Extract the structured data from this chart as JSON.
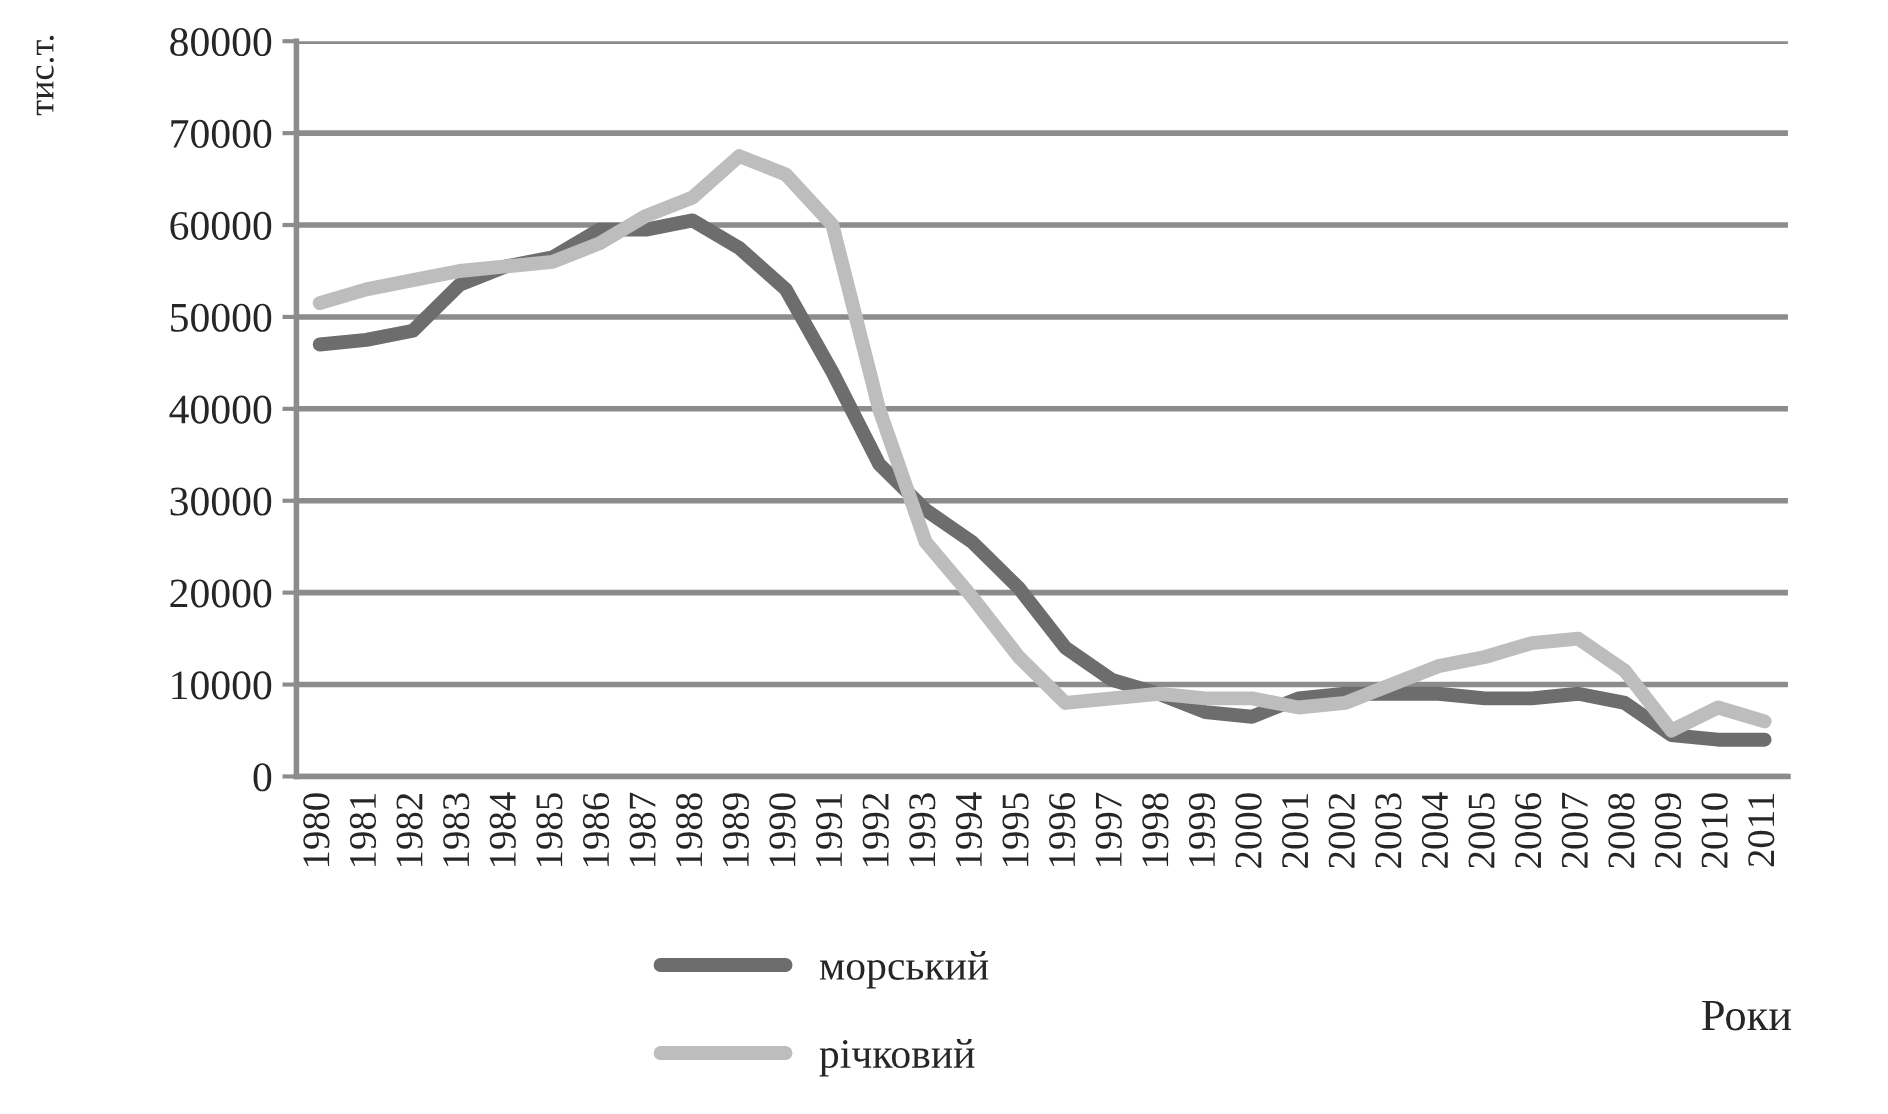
{
  "chart_data": {
    "type": "line",
    "ylabel": "тис.т.",
    "xlabel": "Роки",
    "categories": [
      "1980",
      "1981",
      "1982",
      "1983",
      "1984",
      "1985",
      "1986",
      "1987",
      "1988",
      "1989",
      "1990",
      "1991",
      "1992",
      "1993",
      "1994",
      "1995",
      "1996",
      "1997",
      "1998",
      "1999",
      "2000",
      "2001",
      "2002",
      "2003",
      "2004",
      "2005",
      "2006",
      "2007",
      "2008",
      "2009",
      "2010",
      "2011"
    ],
    "series": [
      {
        "name": "морський",
        "color": "#6d6d6d",
        "values": [
          47000,
          47500,
          48500,
          53500,
          55500,
          56500,
          59500,
          59500,
          60500,
          57500,
          53000,
          44000,
          34000,
          29000,
          25500,
          20500,
          14000,
          10500,
          9000,
          7000,
          6500,
          8500,
          9000,
          9000,
          9000,
          8500,
          8500,
          9000,
          8000,
          4500,
          4000,
          4000
        ]
      },
      {
        "name": "річковий",
        "color": "#bdbdbd",
        "values": [
          51500,
          53000,
          54000,
          55000,
          55500,
          56000,
          58000,
          61000,
          63000,
          67500,
          65500,
          60000,
          40000,
          25500,
          19500,
          13000,
          8000,
          8500,
          9000,
          8500,
          8500,
          7500,
          8000,
          10000,
          12000,
          13000,
          14500,
          15000,
          11500,
          5000,
          7500,
          6000
        ]
      }
    ],
    "ylim": [
      0,
      80000
    ],
    "yticks": [
      0,
      10000,
      20000,
      30000,
      40000,
      50000,
      60000,
      70000,
      80000
    ],
    "grid": "y",
    "legend": "bottom",
    "line_style": "solid",
    "marker": "none"
  }
}
